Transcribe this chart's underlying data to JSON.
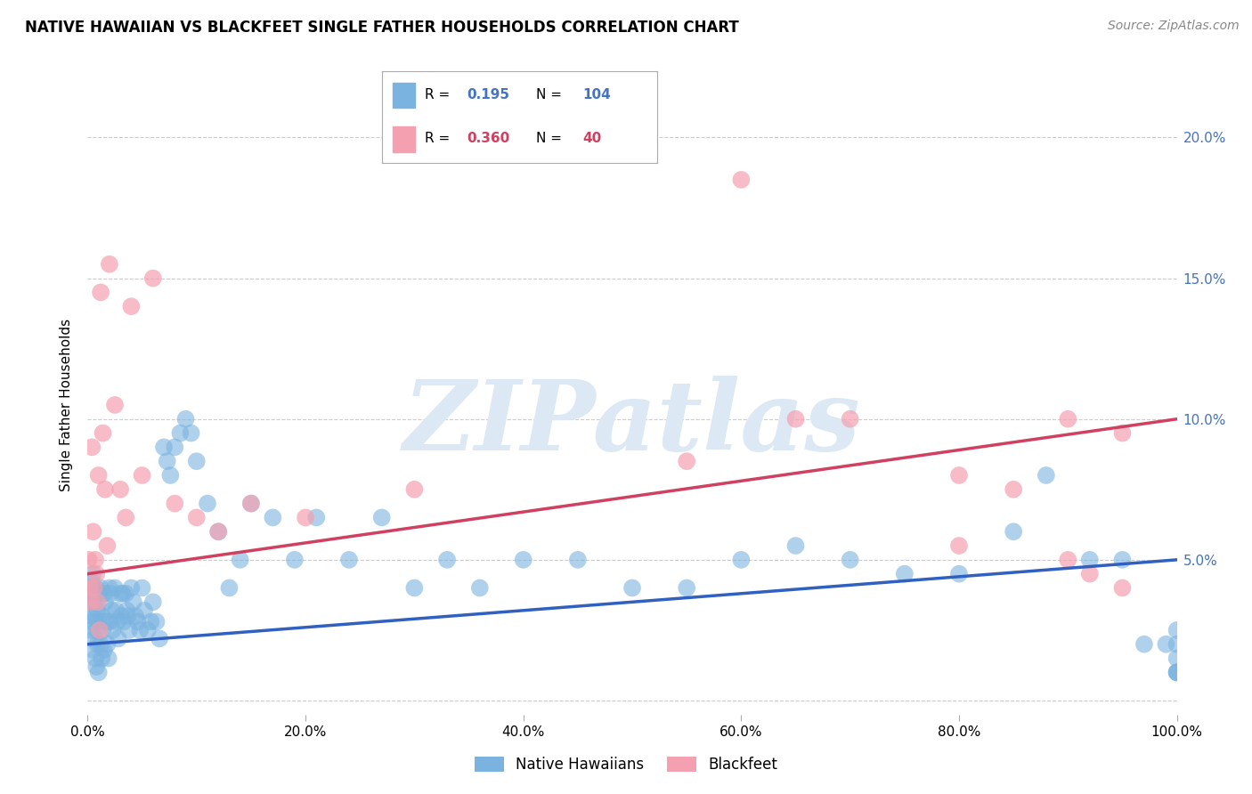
{
  "title": "NATIVE HAWAIIAN VS BLACKFEET SINGLE FATHER HOUSEHOLDS CORRELATION CHART",
  "source": "Source: ZipAtlas.com",
  "ylabel": "Single Father Households",
  "xlim": [
    0,
    1.0
  ],
  "ylim": [
    -0.005,
    0.215
  ],
  "xticks": [
    0.0,
    0.2,
    0.4,
    0.6,
    0.8,
    1.0
  ],
  "xtick_labels": [
    "0.0%",
    "20.0%",
    "40.0%",
    "60.0%",
    "80.0%",
    "100.0%"
  ],
  "yticks": [
    0.0,
    0.05,
    0.1,
    0.15,
    0.2
  ],
  "ytick_labels": [
    "",
    "5.0%",
    "10.0%",
    "15.0%",
    "20.0%"
  ],
  "color_blue": "#7ab3e0",
  "color_pink": "#f4a0b0",
  "trend_blue": "#3060c0",
  "trend_pink": "#d04060",
  "legend_r_blue": "0.195",
  "legend_n_blue": "104",
  "legend_r_pink": "0.360",
  "legend_n_pink": "40",
  "legend_label_blue": "Native Hawaiians",
  "legend_label_pink": "Blackfeet",
  "watermark": "ZIPatlas",
  "blue_x": [
    0.001,
    0.002,
    0.003,
    0.003,
    0.004,
    0.004,
    0.005,
    0.005,
    0.005,
    0.006,
    0.006,
    0.007,
    0.007,
    0.007,
    0.008,
    0.008,
    0.008,
    0.009,
    0.009,
    0.01,
    0.01,
    0.01,
    0.012,
    0.012,
    0.013,
    0.013,
    0.014,
    0.015,
    0.015,
    0.016,
    0.017,
    0.018,
    0.019,
    0.02,
    0.02,
    0.021,
    0.022,
    0.023,
    0.025,
    0.026,
    0.027,
    0.028,
    0.03,
    0.031,
    0.032,
    0.033,
    0.035,
    0.036,
    0.037,
    0.038,
    0.04,
    0.042,
    0.044,
    0.046,
    0.048,
    0.05,
    0.052,
    0.055,
    0.058,
    0.06,
    0.063,
    0.066,
    0.07,
    0.073,
    0.076,
    0.08,
    0.085,
    0.09,
    0.095,
    0.1,
    0.11,
    0.12,
    0.13,
    0.14,
    0.15,
    0.17,
    0.19,
    0.21,
    0.24,
    0.27,
    0.3,
    0.33,
    0.36,
    0.4,
    0.45,
    0.5,
    0.55,
    0.6,
    0.65,
    0.7,
    0.75,
    0.8,
    0.85,
    0.88,
    0.92,
    0.95,
    0.97,
    0.99,
    1.0,
    1.0,
    1.0,
    1.0,
    1.0,
    1.0
  ],
  "blue_y": [
    0.04,
    0.035,
    0.038,
    0.025,
    0.042,
    0.03,
    0.045,
    0.028,
    0.018,
    0.035,
    0.022,
    0.04,
    0.03,
    0.015,
    0.038,
    0.025,
    0.012,
    0.032,
    0.02,
    0.038,
    0.028,
    0.01,
    0.04,
    0.02,
    0.03,
    0.015,
    0.025,
    0.038,
    0.018,
    0.035,
    0.028,
    0.02,
    0.015,
    0.04,
    0.028,
    0.038,
    0.032,
    0.025,
    0.04,
    0.032,
    0.028,
    0.022,
    0.038,
    0.03,
    0.038,
    0.028,
    0.038,
    0.032,
    0.03,
    0.025,
    0.04,
    0.035,
    0.03,
    0.028,
    0.025,
    0.04,
    0.032,
    0.025,
    0.028,
    0.035,
    0.028,
    0.022,
    0.09,
    0.085,
    0.08,
    0.09,
    0.095,
    0.1,
    0.095,
    0.085,
    0.07,
    0.06,
    0.04,
    0.05,
    0.07,
    0.065,
    0.05,
    0.065,
    0.05,
    0.065,
    0.04,
    0.05,
    0.04,
    0.05,
    0.05,
    0.04,
    0.04,
    0.05,
    0.055,
    0.05,
    0.045,
    0.045,
    0.06,
    0.08,
    0.05,
    0.05,
    0.02,
    0.02,
    0.01,
    0.01,
    0.01,
    0.015,
    0.02,
    0.025
  ],
  "pink_x": [
    0.001,
    0.002,
    0.003,
    0.004,
    0.005,
    0.006,
    0.007,
    0.008,
    0.009,
    0.01,
    0.011,
    0.012,
    0.014,
    0.016,
    0.018,
    0.02,
    0.025,
    0.03,
    0.035,
    0.04,
    0.05,
    0.06,
    0.08,
    0.1,
    0.12,
    0.15,
    0.2,
    0.3,
    0.55,
    0.6,
    0.65,
    0.7,
    0.8,
    0.8,
    0.85,
    0.9,
    0.9,
    0.92,
    0.95,
    0.95
  ],
  "pink_y": [
    0.05,
    0.04,
    0.035,
    0.09,
    0.06,
    0.04,
    0.05,
    0.045,
    0.035,
    0.08,
    0.025,
    0.145,
    0.095,
    0.075,
    0.055,
    0.155,
    0.105,
    0.075,
    0.065,
    0.14,
    0.08,
    0.15,
    0.07,
    0.065,
    0.06,
    0.07,
    0.065,
    0.075,
    0.085,
    0.185,
    0.1,
    0.1,
    0.08,
    0.055,
    0.075,
    0.1,
    0.05,
    0.045,
    0.04,
    0.095
  ],
  "blue_trend_x0": 0.0,
  "blue_trend_y0": 0.02,
  "blue_trend_x1": 1.0,
  "blue_trend_y1": 0.05,
  "pink_trend_x0": 0.0,
  "pink_trend_y0": 0.045,
  "pink_trend_x1": 1.0,
  "pink_trend_y1": 0.1
}
